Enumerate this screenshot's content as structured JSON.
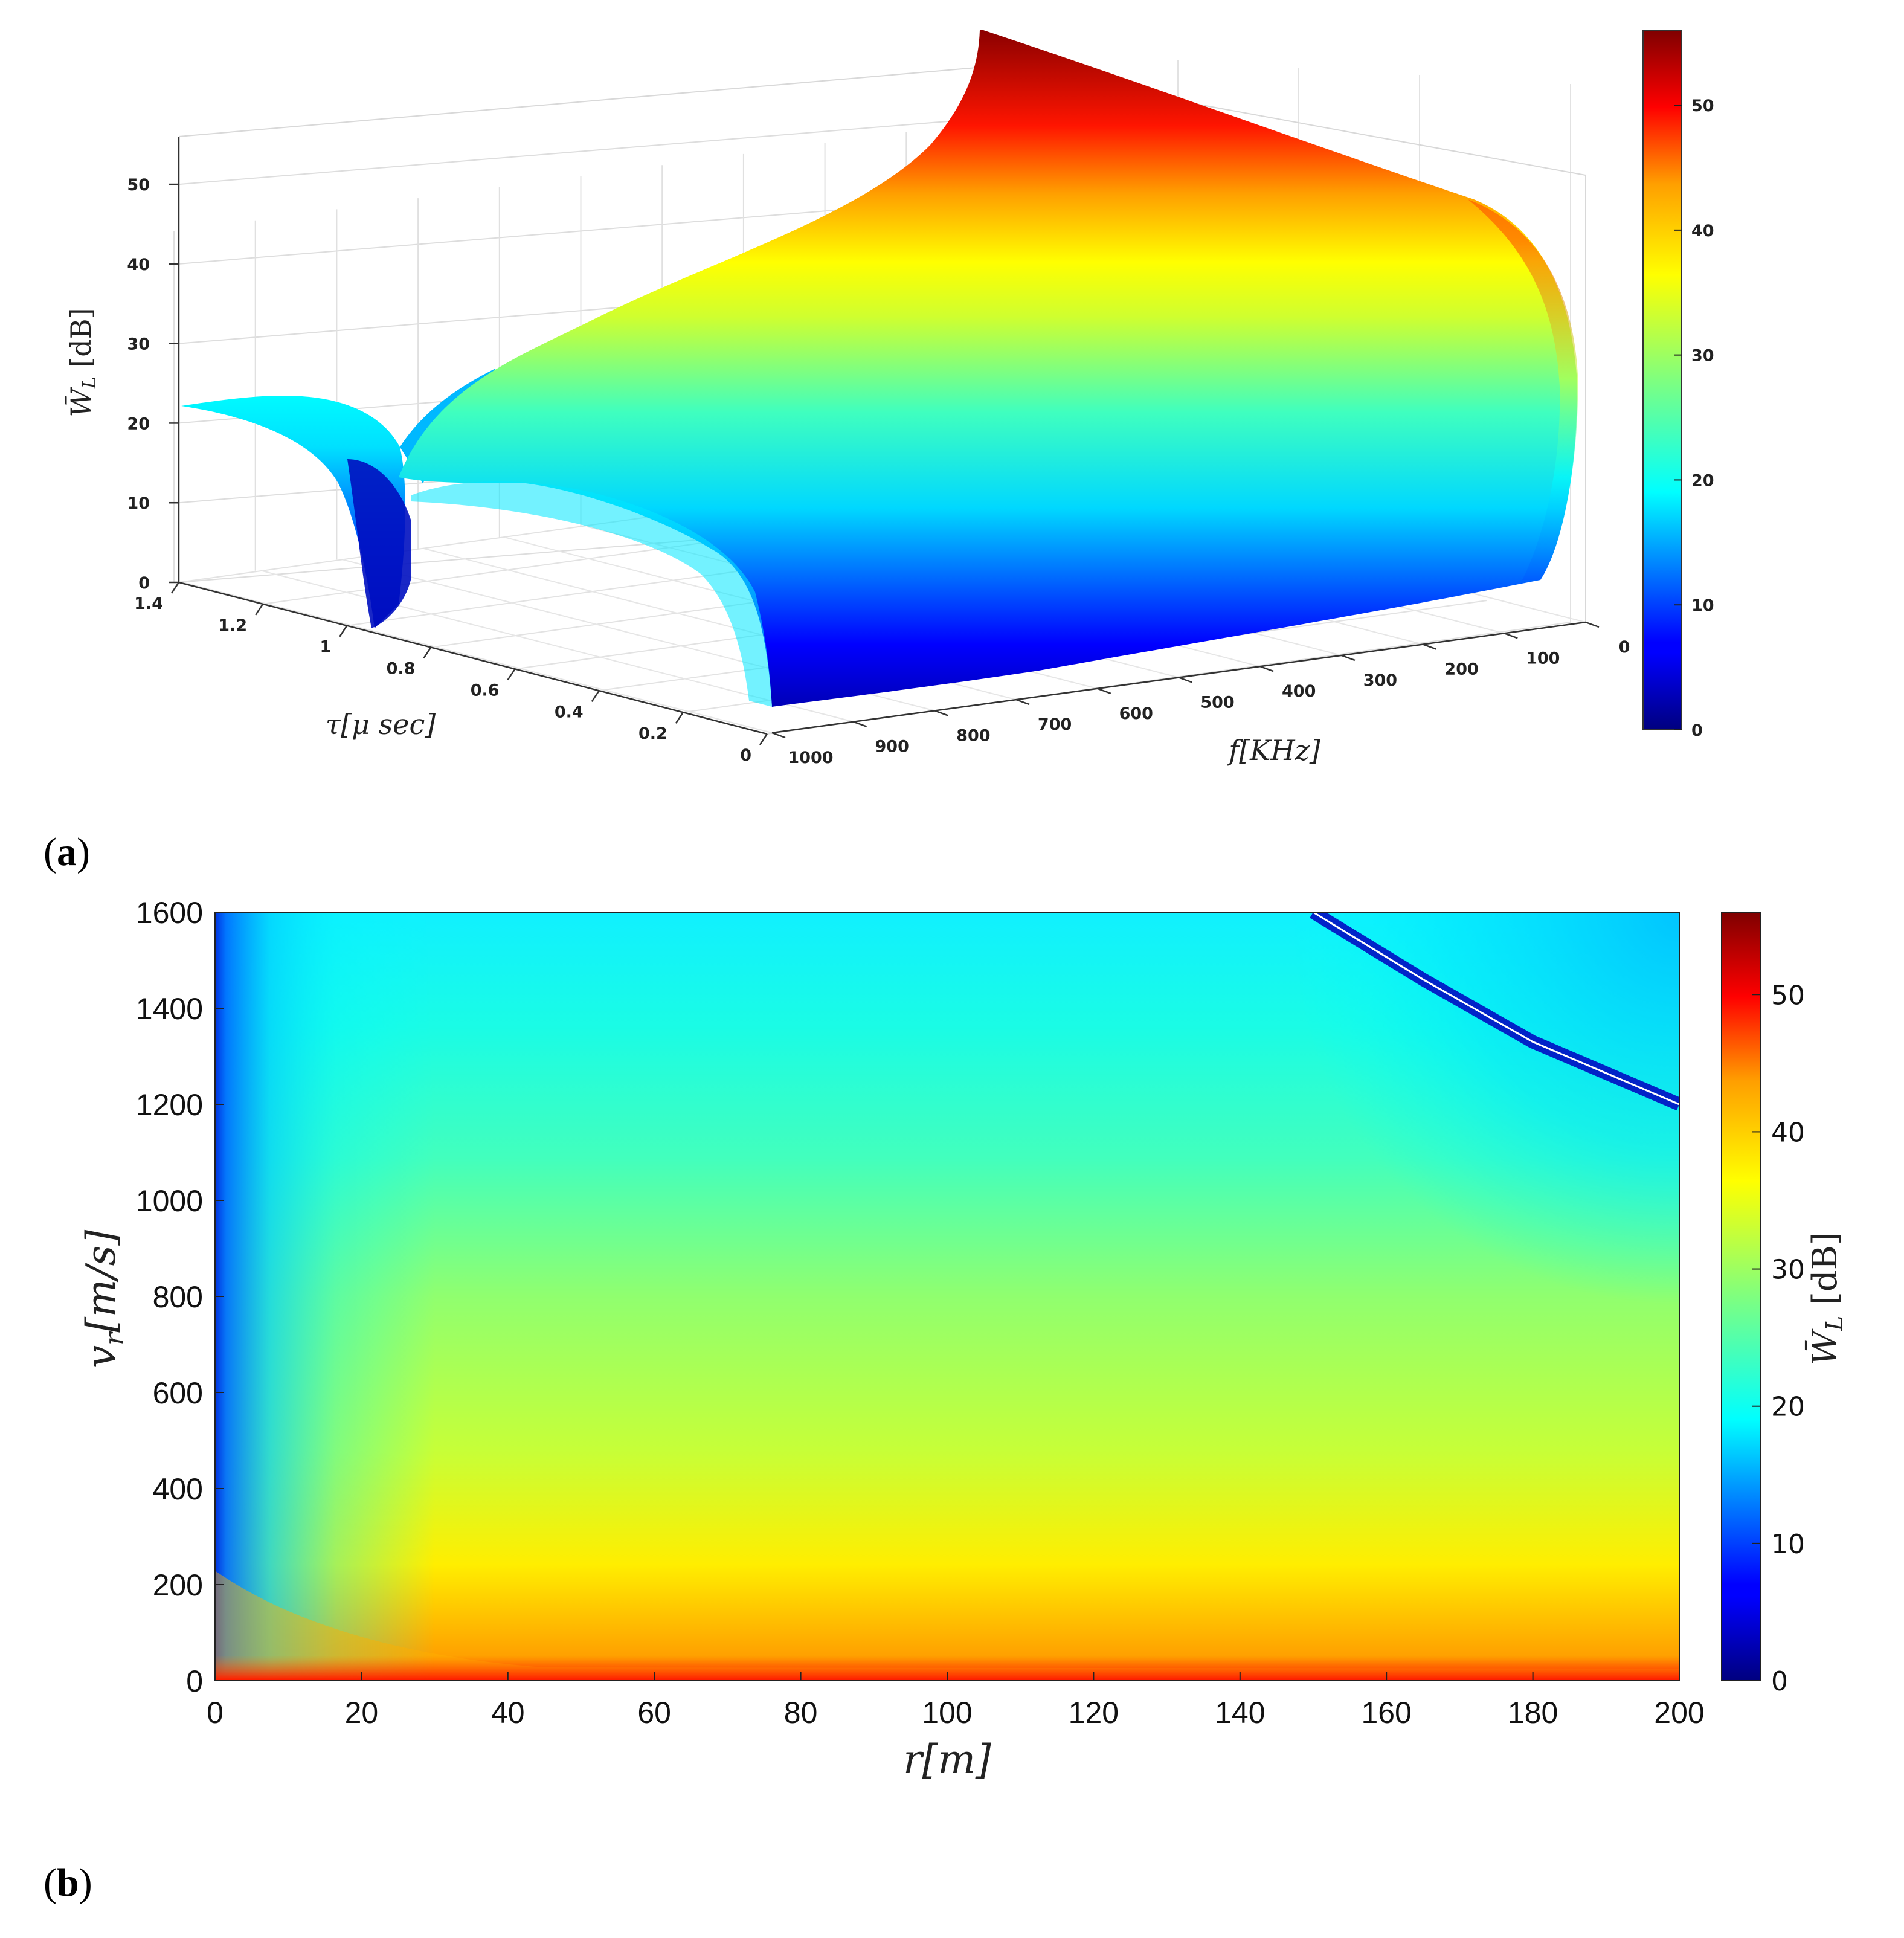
{
  "chart_data": [
    {
      "panel": "(a)",
      "type": "surface3d",
      "zlabel": "W̄L [dB]",
      "ylabel": "τ[μ sec]",
      "xlabel": "f[KHz]",
      "x_ticks": [
        "1000",
        "900",
        "800",
        "700",
        "600",
        "500",
        "400",
        "300",
        "200",
        "100",
        "0"
      ],
      "y_ticks": [
        "0",
        "0.2",
        "0.4",
        "0.6",
        "0.8",
        "1",
        "1.2",
        "1.4"
      ],
      "z_ticks": [
        "0",
        "10",
        "20",
        "30",
        "40",
        "50"
      ],
      "zlim": [
        0,
        56
      ],
      "colorbar": {
        "ticks": [
          "0",
          "10",
          "20",
          "30",
          "40",
          "50"
        ],
        "range": [
          0,
          56
        ],
        "colormap": "jet"
      },
      "surface": {
        "description_values": [
          {
            "f": 1000,
            "tau": 0.0,
            "W": 0
          },
          {
            "f": 1000,
            "tau": 1.4,
            "W": 22
          },
          {
            "f": 0,
            "tau": 0.0,
            "W": 24
          },
          {
            "f": 0,
            "tau": 0.4,
            "W": 56
          },
          {
            "f": 500,
            "tau": 0.9,
            "W": 2
          }
        ]
      }
    },
    {
      "panel": "(b)",
      "type": "heatmap",
      "xlabel": "r[m]",
      "ylabel": "v_r[m/s]",
      "colorbar_label": "W̄L [dB]",
      "x_ticks": [
        "0",
        "20",
        "40",
        "60",
        "80",
        "100",
        "120",
        "140",
        "160",
        "180",
        "200"
      ],
      "y_ticks": [
        "0",
        "200",
        "400",
        "600",
        "800",
        "1000",
        "1200",
        "1400",
        "1600"
      ],
      "xlim": [
        0,
        200
      ],
      "ylim": [
        0,
        1600
      ],
      "colorbar": {
        "ticks": [
          "0",
          "10",
          "20",
          "30",
          "40",
          "50"
        ],
        "range": [
          0,
          56
        ],
        "colormap": "jet"
      },
      "null_curve": [
        {
          "r": 150,
          "v": 1600
        },
        {
          "r": 165,
          "v": 1460
        },
        {
          "r": 180,
          "v": 1330
        },
        {
          "r": 200,
          "v": 1200
        }
      ]
    }
  ],
  "labels": {
    "panel_a_open": "(",
    "panel_a_letter": "a",
    "panel_a_close": ")",
    "panel_b_open": "(",
    "panel_b_letter": "b",
    "panel_b_close": ")"
  }
}
